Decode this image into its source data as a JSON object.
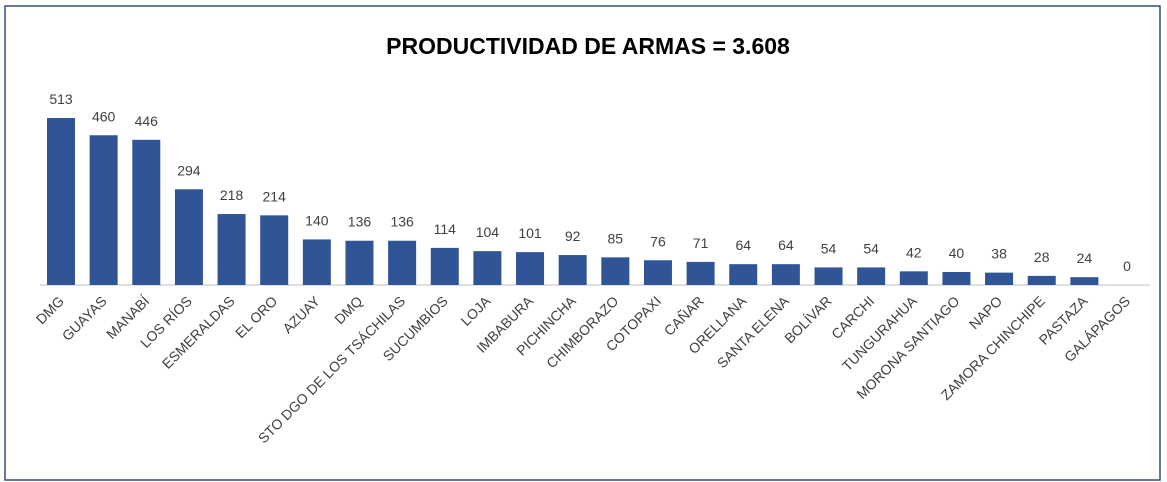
{
  "chart_data": {
    "type": "bar",
    "title": "PRODUCTIVIDAD DE ARMAS = 3.608",
    "categories": [
      "DMG",
      "GUAYAS",
      "MANABÍ",
      "LOS RÍOS",
      "ESMERALDAS",
      "EL ORO",
      "AZUAY",
      "DMQ",
      "STO DGO DE LOS TSÁCHILAS",
      "SUCUMBÍOS",
      "LOJA",
      "IMBABURA",
      "PICHINCHA",
      "CHIMBORAZO",
      "COTOPAXI",
      "CAÑAR",
      "ORELLANA",
      "SANTA ELENA",
      "BOLÍVAR",
      "CARCHI",
      "TUNGURAHUA",
      "MORONA SANTIAGO",
      "NAPO",
      "ZAMORA CHINCHIPE",
      "PASTAZA",
      "GALÁPAGOS"
    ],
    "values": [
      513,
      460,
      446,
      294,
      218,
      214,
      140,
      136,
      136,
      114,
      104,
      101,
      92,
      85,
      76,
      71,
      64,
      64,
      54,
      54,
      42,
      40,
      38,
      28,
      24,
      0
    ],
    "color": "#2f5597"
  }
}
